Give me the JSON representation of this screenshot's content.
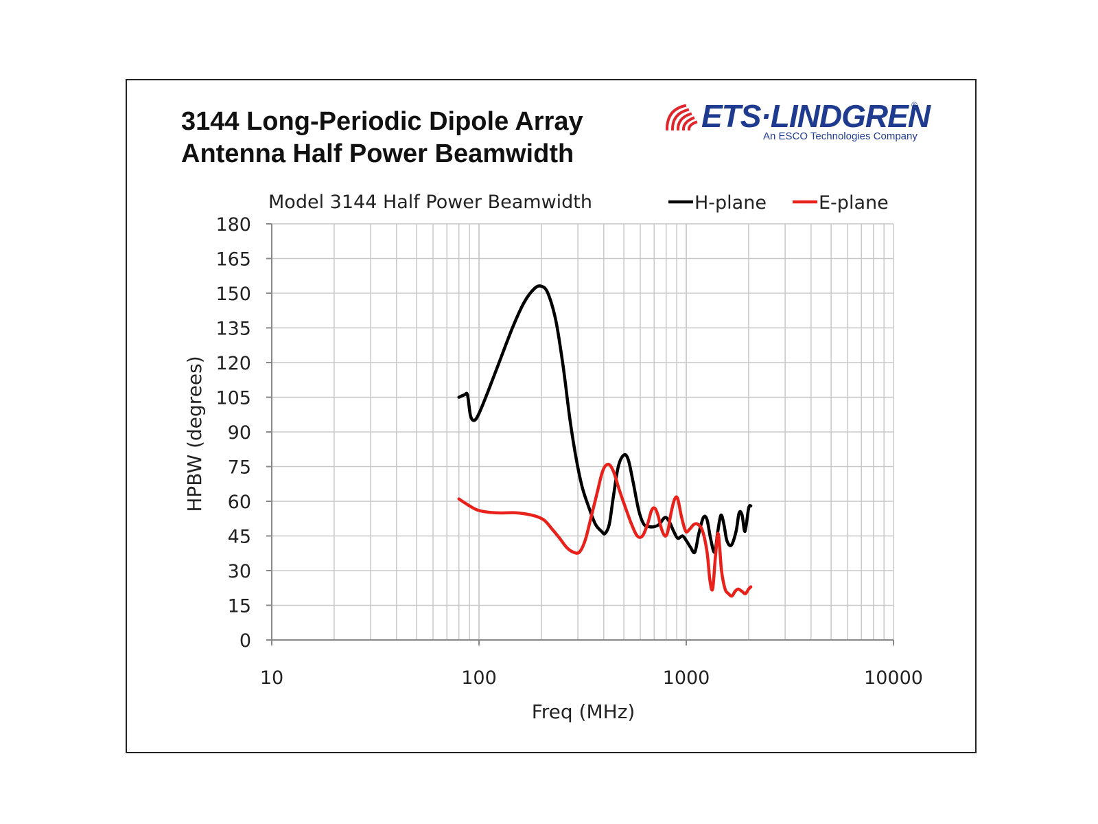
{
  "document": {
    "title_line1": "3144 Long-Periodic Dipole Array",
    "title_line2": "Antenna Half Power Beamwidth"
  },
  "logo": {
    "wordmark": "ETS·LINDGREN",
    "registered": "®",
    "tagline": "An ESCO Technologies Company",
    "color": "#1f3b8f",
    "mark_color": "#e0262d"
  },
  "chart_data": {
    "type": "line",
    "title": "Model 3144 Half Power Beamwidth",
    "xlabel": "Freq (MHz)",
    "ylabel": "HPBW (degrees)",
    "x_scale": "log",
    "xlim": [
      10,
      10000
    ],
    "ylim": [
      0,
      180
    ],
    "x_ticks": [
      10,
      100,
      1000,
      10000
    ],
    "x_tick_labels": [
      "10",
      "100",
      "1000",
      "10000"
    ],
    "y_ticks": [
      0,
      15,
      30,
      45,
      60,
      75,
      90,
      105,
      120,
      135,
      150,
      165,
      180
    ],
    "y_tick_labels": [
      "0",
      "15",
      "30",
      "45",
      "60",
      "75",
      "90",
      "105",
      "120",
      "135",
      "150",
      "165",
      "180"
    ],
    "grid": true,
    "legend_position": "top-right",
    "series": [
      {
        "name": "H-plane",
        "color": "#000000",
        "points": [
          [
            80,
            105
          ],
          [
            85,
            106
          ],
          [
            88,
            106
          ],
          [
            91,
            97
          ],
          [
            95,
            95
          ],
          [
            100,
            98
          ],
          [
            110,
            107
          ],
          [
            125,
            120
          ],
          [
            145,
            135
          ],
          [
            165,
            146
          ],
          [
            185,
            152
          ],
          [
            200,
            153
          ],
          [
            215,
            150
          ],
          [
            235,
            138
          ],
          [
            255,
            118
          ],
          [
            275,
            95
          ],
          [
            295,
            78
          ],
          [
            315,
            66
          ],
          [
            340,
            57
          ],
          [
            365,
            50
          ],
          [
            390,
            47
          ],
          [
            405,
            46
          ],
          [
            425,
            50
          ],
          [
            445,
            62
          ],
          [
            470,
            75
          ],
          [
            500,
            80
          ],
          [
            525,
            78
          ],
          [
            555,
            68
          ],
          [
            590,
            56
          ],
          [
            625,
            50
          ],
          [
            665,
            49
          ],
          [
            700,
            49
          ],
          [
            740,
            50
          ],
          [
            790,
            53
          ],
          [
            830,
            51
          ],
          [
            870,
            47
          ],
          [
            910,
            44
          ],
          [
            960,
            45
          ],
          [
            1000,
            43
          ],
          [
            1050,
            40
          ],
          [
            1100,
            38
          ],
          [
            1150,
            46
          ],
          [
            1210,
            53
          ],
          [
            1260,
            52
          ],
          [
            1310,
            44
          ],
          [
            1370,
            38
          ],
          [
            1420,
            47
          ],
          [
            1470,
            54
          ],
          [
            1520,
            50
          ],
          [
            1570,
            43
          ],
          [
            1650,
            41
          ],
          [
            1740,
            47
          ],
          [
            1800,
            55
          ],
          [
            1860,
            54
          ],
          [
            1920,
            47
          ],
          [
            2000,
            57
          ],
          [
            2050,
            58
          ]
        ]
      },
      {
        "name": "E-plane",
        "color": "#e8211b",
        "points": [
          [
            80,
            61
          ],
          [
            90,
            58
          ],
          [
            100,
            56
          ],
          [
            120,
            55
          ],
          [
            150,
            55
          ],
          [
            180,
            54
          ],
          [
            205,
            52
          ],
          [
            225,
            48
          ],
          [
            245,
            44
          ],
          [
            265,
            40
          ],
          [
            285,
            38
          ],
          [
            305,
            38
          ],
          [
            325,
            43
          ],
          [
            345,
            52
          ],
          [
            370,
            63
          ],
          [
            395,
            73
          ],
          [
            420,
            76
          ],
          [
            445,
            73
          ],
          [
            475,
            65
          ],
          [
            510,
            57
          ],
          [
            545,
            50
          ],
          [
            580,
            45
          ],
          [
            615,
            45
          ],
          [
            650,
            50
          ],
          [
            680,
            56
          ],
          [
            705,
            57
          ],
          [
            730,
            54
          ],
          [
            760,
            48
          ],
          [
            790,
            45
          ],
          [
            815,
            47
          ],
          [
            845,
            55
          ],
          [
            880,
            61
          ],
          [
            910,
            61
          ],
          [
            950,
            53
          ],
          [
            995,
            47
          ],
          [
            1040,
            48
          ],
          [
            1090,
            50
          ],
          [
            1140,
            50
          ],
          [
            1200,
            47
          ],
          [
            1260,
            38
          ],
          [
            1300,
            26
          ],
          [
            1340,
            22
          ],
          [
            1380,
            35
          ],
          [
            1420,
            46
          ],
          [
            1450,
            40
          ],
          [
            1480,
            30
          ],
          [
            1540,
            22
          ],
          [
            1600,
            20
          ],
          [
            1660,
            19
          ],
          [
            1720,
            21
          ],
          [
            1780,
            22
          ],
          [
            1860,
            21
          ],
          [
            1930,
            20
          ],
          [
            2000,
            22
          ],
          [
            2050,
            23
          ]
        ]
      }
    ]
  }
}
